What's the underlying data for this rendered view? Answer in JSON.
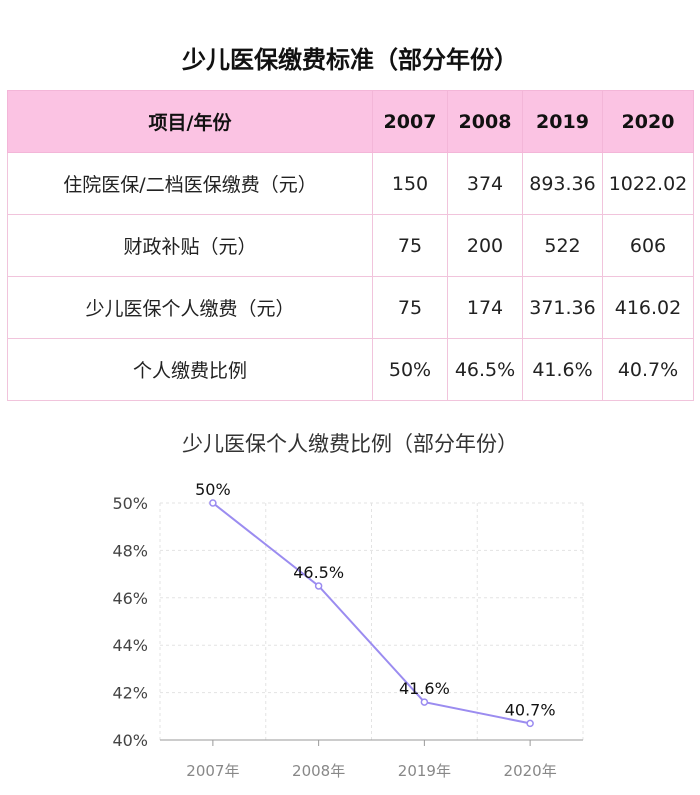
{
  "table": {
    "title": "少儿医保缴费标准（部分年份）",
    "headers": [
      "项目/年份",
      "2007",
      "2008",
      "2019",
      "2020"
    ],
    "rows": [
      [
        "住院医保/二档医保缴费（元）",
        "150",
        "374",
        "893.36",
        "1022.02"
      ],
      [
        "财政补贴（元）",
        "75",
        "200",
        "522",
        "606"
      ],
      [
        "少儿医保个人缴费（元）",
        "75",
        "174",
        "371.36",
        "416.02"
      ],
      [
        "个人缴费比例",
        "50%",
        "46.5%",
        "41.6%",
        "40.7%"
      ]
    ]
  },
  "chart_data": {
    "type": "line",
    "title": "少儿医保个人缴费比例（部分年份）",
    "categories": [
      "2007年",
      "2008年",
      "2019年",
      "2020年"
    ],
    "series": [
      {
        "values": [
          50,
          46.5,
          41.6,
          40.7
        ]
      }
    ],
    "data_labels": [
      "50%",
      "46.5%",
      "41.6%",
      "40.7%"
    ],
    "ylim": [
      40,
      50
    ],
    "yticks": [
      40,
      42,
      44,
      46,
      48,
      50
    ],
    "ytick_labels": [
      "40%",
      "42%",
      "44%",
      "46%",
      "48%",
      "50%"
    ],
    "grid": true,
    "line_color": "#9b8cf0",
    "header_color": "#fbc3e3"
  }
}
